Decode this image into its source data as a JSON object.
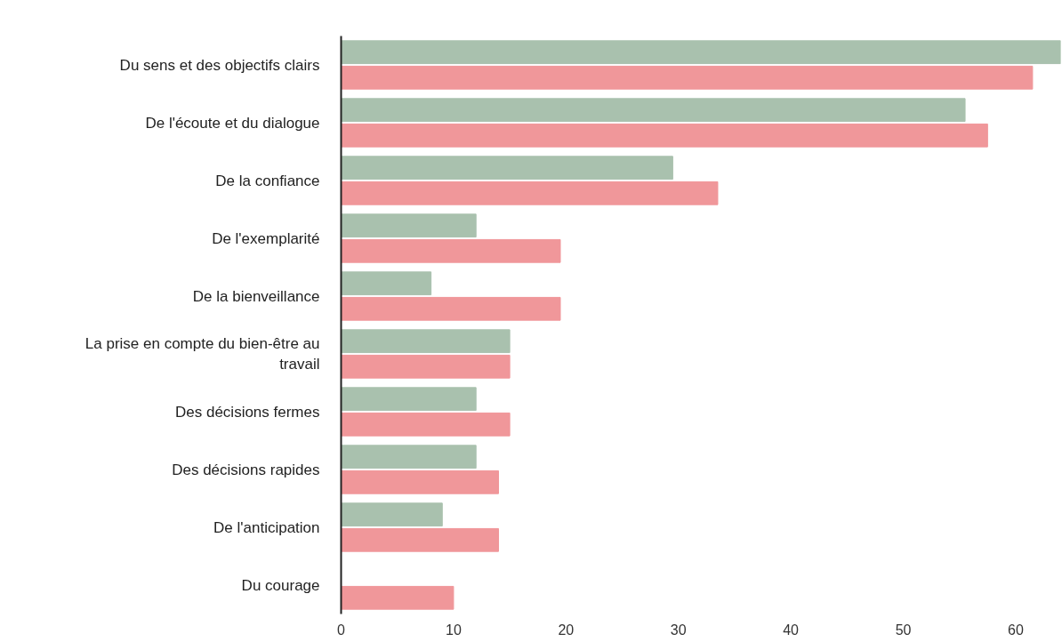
{
  "chart_data": {
    "type": "bar",
    "orientation": "horizontal",
    "categories": [
      "Du sens et des objectifs clairs",
      "De l'écoute et du dialogue",
      "De la confiance",
      "De l'exemplarité",
      "De la bienveillance",
      "La prise en compte du bien-être au travail",
      "Des décisions fermes",
      "Des décisions rapides",
      "De l'anticipation",
      "Du courage"
    ],
    "series": [
      {
        "color": "#a9c1ae",
        "values": [
          64,
          55.5,
          29.5,
          12,
          8,
          15,
          12,
          12,
          9,
          null
        ]
      },
      {
        "color": "#f0979a",
        "values": [
          61.5,
          57.5,
          33.5,
          19.5,
          19.5,
          15,
          15,
          14,
          14,
          10
        ]
      }
    ],
    "xlim": [
      0,
      64
    ],
    "xticks": [
      0,
      10,
      20,
      30,
      40,
      50,
      60
    ],
    "grid": false
  }
}
